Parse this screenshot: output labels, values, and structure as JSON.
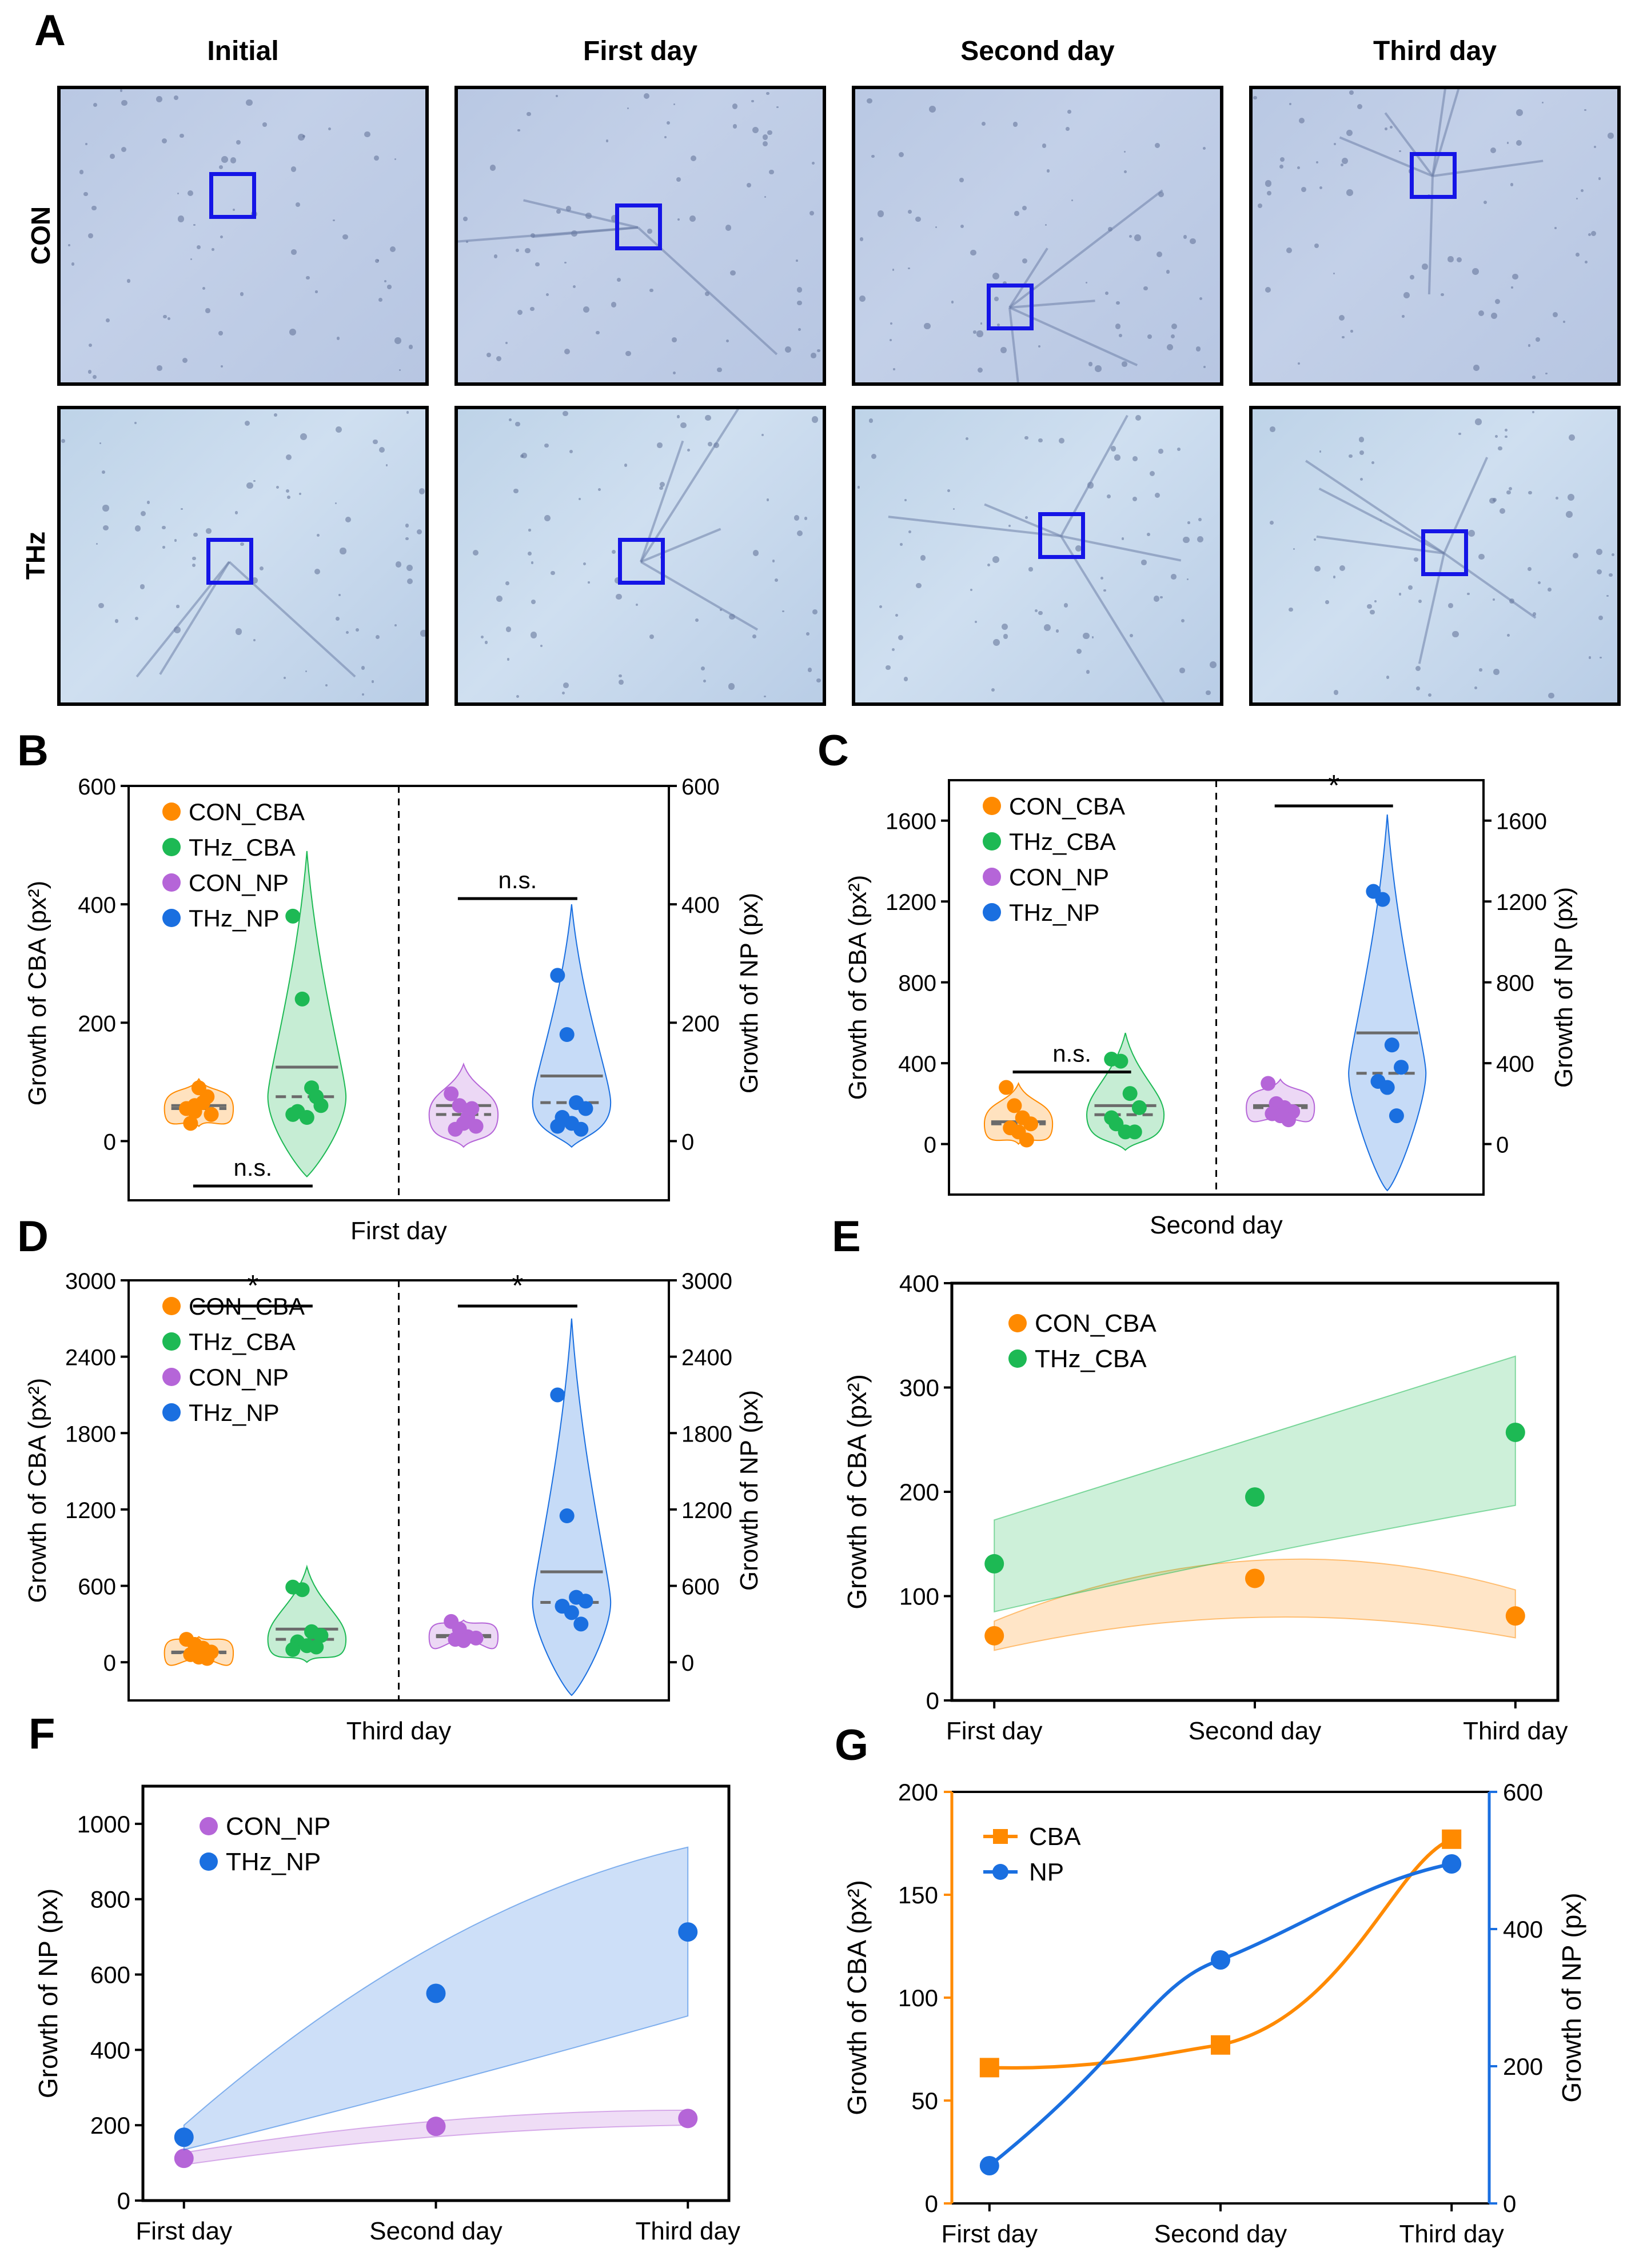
{
  "panel_labels": {
    "A": "A",
    "B": "B",
    "C": "C",
    "D": "D",
    "E": "E",
    "F": "F",
    "G": "G"
  },
  "panel_a": {
    "columns": [
      "Initial",
      "First day",
      "Second day",
      "Third day"
    ],
    "rows": [
      "CON",
      "THz"
    ]
  },
  "colors": {
    "con_cba": "#ff8a00",
    "thz_cba": "#1db954",
    "con_np": "#b565d8",
    "thz_np": "#1a6fe0",
    "cba_line": "#ff8a00",
    "np_line": "#1a6fe0",
    "mean_line": "#6b6b6b",
    "roi": "#1515e6"
  },
  "chart_data": [
    {
      "id": "B",
      "type": "violin",
      "title": "",
      "xlabel": "First day",
      "ylabel_left": "Growth of CBA  (px²)",
      "ylabel_right": "Growth of NP  (px)",
      "ylim_left": [
        -100,
        600
      ],
      "yticks_left": [
        0,
        200,
        400,
        600
      ],
      "ylim_right": [
        -100,
        600
      ],
      "yticks_right": [
        0,
        200,
        400,
        600
      ],
      "legend": [
        "CON_CBA",
        "THz_CBA",
        "CON_NP",
        "THz_NP"
      ],
      "groups": [
        {
          "name": "CON_CBA",
          "points": [
            55,
            60,
            65,
            45,
            30,
            90,
            75,
            55,
            50
          ],
          "mean": 60,
          "median": 55,
          "min": 25,
          "max": 105
        },
        {
          "name": "THz_CBA",
          "points": [
            380,
            240,
            90,
            60,
            50,
            40,
            75,
            45
          ],
          "mean": 125,
          "median": 75,
          "min": -60,
          "max": 490
        },
        {
          "name": "CON_NP",
          "points": [
            80,
            60,
            40,
            25,
            20,
            30,
            55
          ],
          "mean": 60,
          "median": 45,
          "min": -10,
          "max": 130
        },
        {
          "name": "THz_NP",
          "points": [
            280,
            180,
            65,
            55,
            40,
            30,
            20,
            25
          ],
          "mean": 110,
          "median": 65,
          "min": -10,
          "max": 400
        }
      ],
      "brackets": [
        {
          "label": "n.s.",
          "from": "CON_CBA",
          "to": "THz_CBA",
          "position": "bottom"
        },
        {
          "label": "n.s.",
          "from": "CON_NP",
          "to": "THz_NP",
          "position": "top"
        }
      ]
    },
    {
      "id": "C",
      "type": "violin",
      "xlabel": "Second day",
      "ylabel_left": "Growth of CBA  (px²)",
      "ylabel_right": "Growth of NP  (px)",
      "ylim_left": [
        -250,
        1800
      ],
      "yticks_left": [
        0,
        400,
        800,
        1200,
        1600
      ],
      "ylim_right": [
        -250,
        1800
      ],
      "yticks_right": [
        0,
        400,
        800,
        1200,
        1600
      ],
      "legend": [
        "CON_CBA",
        "THz_CBA",
        "CON_NP",
        "THz_NP"
      ],
      "groups": [
        {
          "name": "CON_CBA",
          "points": [
            280,
            190,
            130,
            100,
            80,
            60,
            20
          ],
          "mean": 110,
          "median": 100,
          "min": 0,
          "max": 300
        },
        {
          "name": "THz_CBA",
          "points": [
            420,
            410,
            250,
            180,
            100,
            60,
            60,
            130
          ],
          "mean": 190,
          "median": 145,
          "min": -30,
          "max": 550
        },
        {
          "name": "CON_NP",
          "points": [
            300,
            200,
            180,
            160,
            150,
            140,
            120
          ],
          "mean": 190,
          "median": 180,
          "min": 110,
          "max": 320
        },
        {
          "name": "THz_NP",
          "points": [
            1250,
            1210,
            490,
            380,
            310,
            280,
            140
          ],
          "mean": 550,
          "median": 350,
          "min": -230,
          "max": 1630
        }
      ],
      "brackets": [
        {
          "label": "n.s.",
          "from": "CON_CBA",
          "to": "THz_CBA",
          "position": "top"
        },
        {
          "label": "*",
          "from": "CON_NP",
          "to": "THz_NP",
          "position": "top"
        }
      ]
    },
    {
      "id": "D",
      "type": "violin",
      "xlabel": "Third day",
      "ylabel_left": "Growth of CBA  (px²)",
      "ylabel_right": "Growth of NP  (px)",
      "ylim_left": [
        -300,
        3000
      ],
      "yticks_left": [
        0,
        600,
        1200,
        1800,
        2400,
        3000
      ],
      "ylim_right": [
        -300,
        3000
      ],
      "yticks_right": [
        0,
        600,
        1200,
        1800,
        2400,
        3000
      ],
      "legend": [
        "CON_CBA",
        "THz_CBA",
        "CON_NP",
        "THz_NP"
      ],
      "groups": [
        {
          "name": "CON_CBA",
          "points": [
            180,
            140,
            110,
            80,
            60,
            40,
            30
          ],
          "mean": 80,
          "median": 75,
          "min": 0,
          "max": 200
        },
        {
          "name": "THz_CBA",
          "points": [
            590,
            570,
            240,
            210,
            160,
            130,
            120,
            100
          ],
          "mean": 260,
          "median": 180,
          "min": 0,
          "max": 750
        },
        {
          "name": "CON_NP",
          "points": [
            320,
            260,
            200,
            190,
            180,
            170
          ],
          "mean": 210,
          "median": 200,
          "min": 150,
          "max": 330
        },
        {
          "name": "THz_NP",
          "points": [
            2100,
            1150,
            510,
            480,
            440,
            390,
            300
          ],
          "mean": 710,
          "median": 470,
          "min": -260,
          "max": 2700
        }
      ],
      "brackets": [
        {
          "label": "*",
          "from": "CON_CBA",
          "to": "THz_CBA",
          "position": "top"
        },
        {
          "label": "*",
          "from": "CON_NP",
          "to": "THz_NP",
          "position": "top"
        }
      ]
    },
    {
      "id": "E",
      "type": "scatter_band",
      "categories": [
        "First day",
        "Second day",
        "Third day"
      ],
      "ylabel": "Growth of CBA  (px²)",
      "ylim": [
        0,
        400
      ],
      "yticks": [
        0,
        100,
        200,
        300,
        400
      ],
      "series": [
        {
          "name": "CON_CBA",
          "values": [
            62,
            117,
            81
          ],
          "band_low": [
            48,
            86,
            60
          ],
          "band_high": [
            76,
            145,
            106
          ]
        },
        {
          "name": "THz_CBA",
          "values": [
            131,
            195,
            257
          ],
          "band_low": [
            85,
            140,
            187
          ],
          "band_high": [
            173,
            252,
            330
          ]
        }
      ]
    },
    {
      "id": "F",
      "type": "scatter_band",
      "categories": [
        "First day",
        "Second day",
        "Third day"
      ],
      "ylabel": "Growth of NP  (px)",
      "ylim": [
        0,
        1100
      ],
      "yticks": [
        0,
        200,
        400,
        600,
        800,
        1000
      ],
      "series": [
        {
          "name": "CON_NP",
          "values": [
            112,
            197,
            218
          ],
          "band_low": [
            95,
            175,
            200
          ],
          "band_high": [
            127,
            218,
            240
          ]
        },
        {
          "name": "THz_NP",
          "values": [
            168,
            550,
            713
          ],
          "band_low": [
            135,
            305,
            490
          ],
          "band_high": [
            200,
            705,
            938
          ]
        }
      ]
    },
    {
      "id": "G",
      "type": "line",
      "categories": [
        "First day",
        "Second day",
        "Third day"
      ],
      "ylabel_left": "Growth of CBA  (px²)",
      "ylabel_right": "Growth of NP  (px)",
      "ylim_left": [
        0,
        200
      ],
      "yticks_left": [
        0,
        50,
        100,
        150,
        200
      ],
      "ylim_right": [
        0,
        600
      ],
      "yticks_right": [
        0,
        200,
        400,
        600
      ],
      "series": [
        {
          "name": "CBA",
          "axis": "left",
          "marker": "square",
          "values": [
            66,
            77,
            177
          ]
        },
        {
          "name": "NP",
          "axis": "right",
          "marker": "circle",
          "values": [
            55,
            355,
            495
          ]
        }
      ]
    }
  ]
}
